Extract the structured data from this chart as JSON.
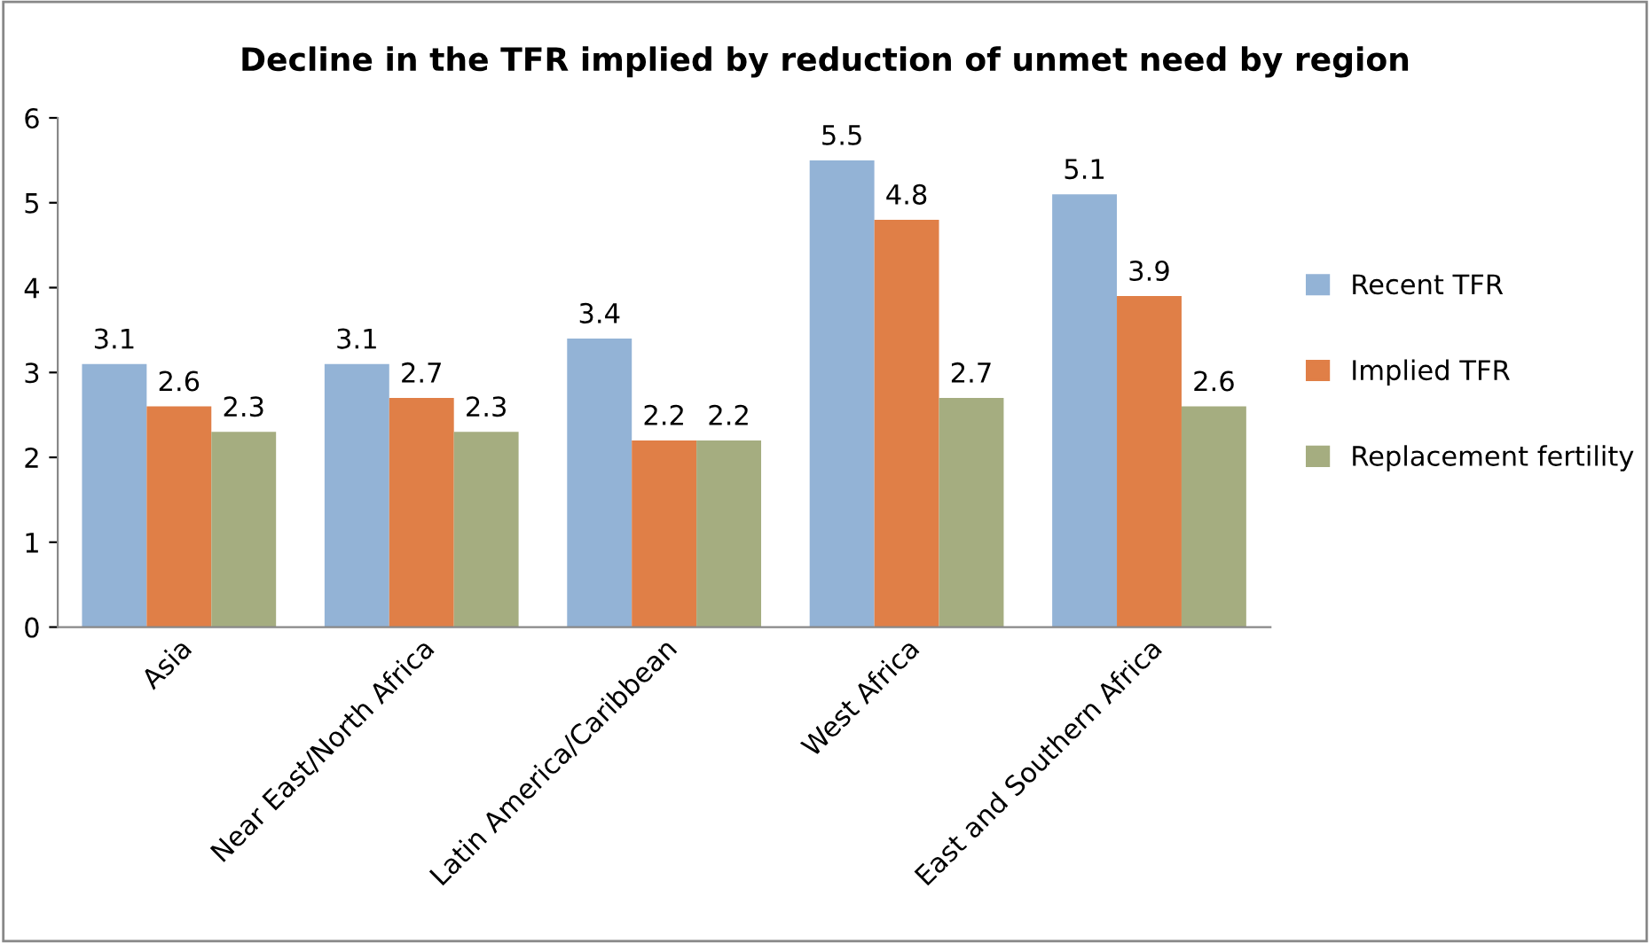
{
  "chart_data": {
    "type": "bar",
    "title": "Decline in the TFR implied by reduction of unmet need by region",
    "categories": [
      "Asia",
      "Near East/North Africa",
      "Latin America/Caribbean",
      "West Africa",
      "East and Southern Africa"
    ],
    "series": [
      {
        "name": "Recent TFR",
        "color": "#93b3d6",
        "values": [
          3.1,
          3.1,
          3.4,
          5.5,
          5.1
        ]
      },
      {
        "name": "Implied TFR",
        "color": "#e07f47",
        "values": [
          2.6,
          2.7,
          2.2,
          4.8,
          3.9
        ]
      },
      {
        "name": "Replacement fertility",
        "color": "#a5ad80",
        "values": [
          2.3,
          2.3,
          2.2,
          2.7,
          2.6
        ]
      }
    ],
    "ylim": [
      0,
      6
    ],
    "yticks": [
      0,
      1,
      2,
      3,
      4,
      5,
      6
    ],
    "grid": false,
    "legend": "right",
    "data_labels": true
  }
}
